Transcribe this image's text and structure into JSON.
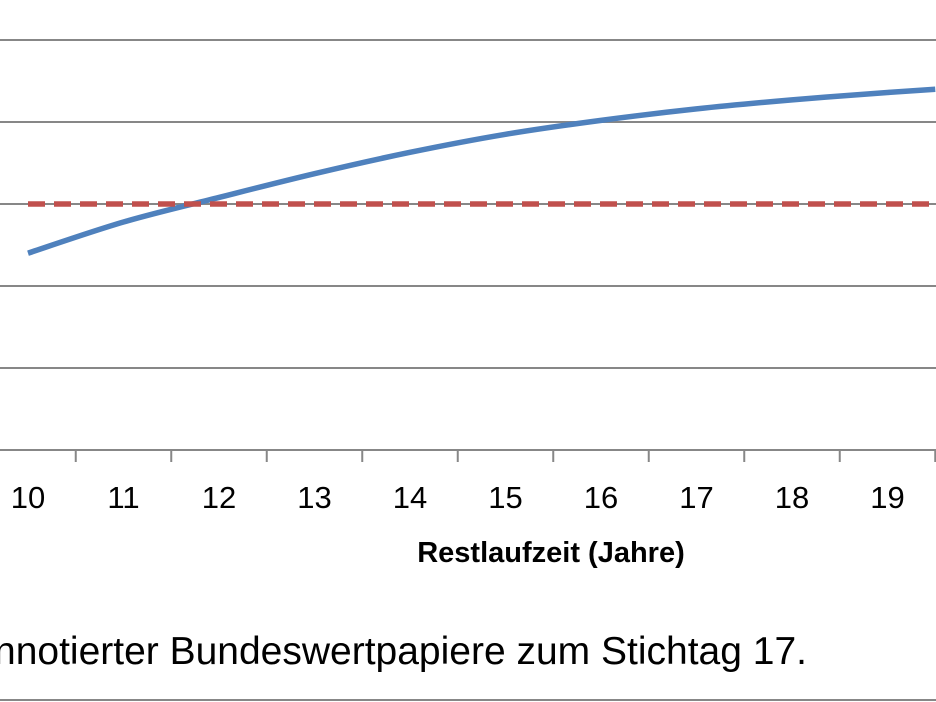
{
  "chart_data": {
    "type": "line",
    "xlabel": "Restlaufzeit (Jahre)",
    "x_ticks": [
      10,
      11,
      12,
      13,
      14,
      15,
      16,
      17,
      18,
      19
    ],
    "series": [
      {
        "color": "#4f81bd",
        "style": "solid",
        "x": [
          10,
          11,
          12,
          13,
          14,
          15,
          16,
          17,
          18,
          19,
          19.5
        ],
        "y": [
          0.4,
          0.78,
          1.08,
          1.37,
          1.63,
          1.85,
          2.02,
          2.16,
          2.27,
          2.36,
          2.4
        ]
      },
      {
        "color": "#c0504d",
        "style": "dashed",
        "x": [
          10,
          19.5
        ],
        "y": [
          1.0,
          1.0
        ]
      }
    ],
    "gridlines": true
  },
  "caption": "nnotierter Bundeswertpapiere zum Stichtag 17."
}
